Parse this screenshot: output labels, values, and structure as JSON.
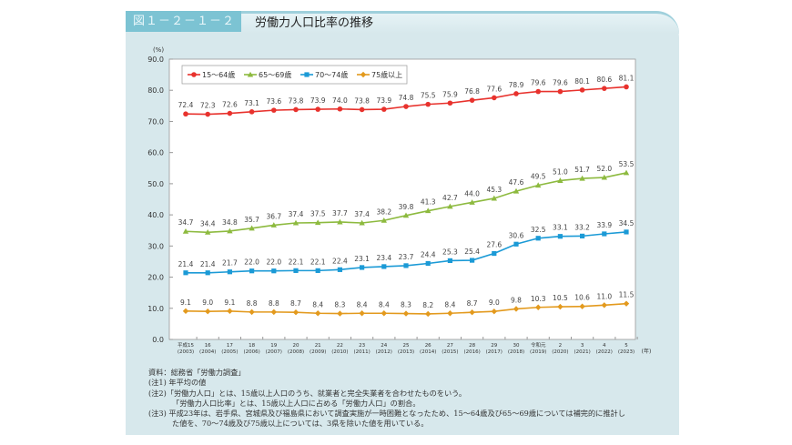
{
  "header": {
    "figure_number": "図１－２－１－２",
    "title": "労働力人口比率の推移"
  },
  "chart_data": {
    "type": "line",
    "title": "労働力人口比率の推移",
    "ylabel": "(%)",
    "xunit": "(年)",
    "ylim": [
      0,
      90
    ],
    "yticks": [
      "0.0",
      "10.0",
      "20.0",
      "30.0",
      "40.0",
      "50.0",
      "60.0",
      "70.0",
      "80.0",
      "90.0"
    ],
    "grid": false,
    "legend_position": "top-left",
    "categories": [
      {
        "era": "平成15",
        "year": "(2003)"
      },
      {
        "era": "16",
        "year": "(2004)"
      },
      {
        "era": "17",
        "year": "(2005)"
      },
      {
        "era": "18",
        "year": "(2006)"
      },
      {
        "era": "19",
        "year": "(2007)"
      },
      {
        "era": "20",
        "year": "(2008)"
      },
      {
        "era": "21",
        "year": "(2009)"
      },
      {
        "era": "22",
        "year": "(2010)"
      },
      {
        "era": "23",
        "year": "(2011)"
      },
      {
        "era": "24",
        "year": "(2012)"
      },
      {
        "era": "25",
        "year": "(2013)"
      },
      {
        "era": "26",
        "year": "(2014)"
      },
      {
        "era": "27",
        "year": "(2015)"
      },
      {
        "era": "28",
        "year": "(2016)"
      },
      {
        "era": "29",
        "year": "(2017)"
      },
      {
        "era": "30",
        "year": "(2018)"
      },
      {
        "era": "令和元",
        "year": "(2019)"
      },
      {
        "era": "2",
        "year": "(2020)"
      },
      {
        "era": "3",
        "year": "(2021)"
      },
      {
        "era": "4",
        "year": "(2022)"
      },
      {
        "era": "5",
        "year": "(2023)"
      }
    ],
    "series": [
      {
        "name": "15～64歳",
        "color": "#e8322d",
        "marker": "circle",
        "values": [
          72.4,
          72.3,
          72.6,
          73.1,
          73.6,
          73.8,
          73.9,
          74.0,
          73.8,
          73.9,
          74.8,
          75.5,
          75.9,
          76.8,
          77.6,
          78.9,
          79.6,
          79.6,
          80.1,
          80.6,
          81.1
        ]
      },
      {
        "name": "65～69歳",
        "color": "#8dba3f",
        "marker": "triangle",
        "values": [
          34.7,
          34.4,
          34.8,
          35.7,
          36.7,
          37.4,
          37.5,
          37.7,
          37.4,
          38.2,
          39.8,
          41.3,
          42.7,
          44.0,
          45.3,
          47.6,
          49.5,
          51.0,
          51.7,
          52.0,
          53.5
        ]
      },
      {
        "name": "70～74歳",
        "color": "#1b9ad6",
        "marker": "square",
        "values": [
          21.4,
          21.4,
          21.7,
          22.0,
          22.0,
          22.1,
          22.1,
          22.4,
          23.1,
          23.4,
          23.7,
          24.4,
          25.3,
          25.4,
          27.6,
          30.6,
          32.5,
          33.1,
          33.2,
          33.9,
          34.5
        ]
      },
      {
        "name": "75歳以上",
        "color": "#e39a1e",
        "marker": "diamond",
        "values": [
          9.1,
          9.0,
          9.1,
          8.8,
          8.8,
          8.7,
          8.4,
          8.3,
          8.4,
          8.4,
          8.3,
          8.2,
          8.4,
          8.7,
          9.0,
          9.8,
          10.3,
          10.5,
          10.6,
          11.0,
          11.5
        ]
      }
    ]
  },
  "notes": {
    "source": "資料：総務省「労働力調査」",
    "note1": "(注1) 年平均の値",
    "note2a": "(注2)「労働力人口」とは、15歳以上人口のうち、就業者と完全失業者を合わせたものをいう。",
    "note2b": "「労働力人口比率」とは、15歳以上人口に占める「労働力人口」の割合。",
    "note3a": "(注3) 平成23年は、岩手県、宮城県及び福島県において調査実施が一時困難となったため、15～64歳及び65～69歳については補完的に推計し",
    "note3b": "た値を、70～74歳及び75歳以上については、3県を除いた値を用いている。"
  }
}
